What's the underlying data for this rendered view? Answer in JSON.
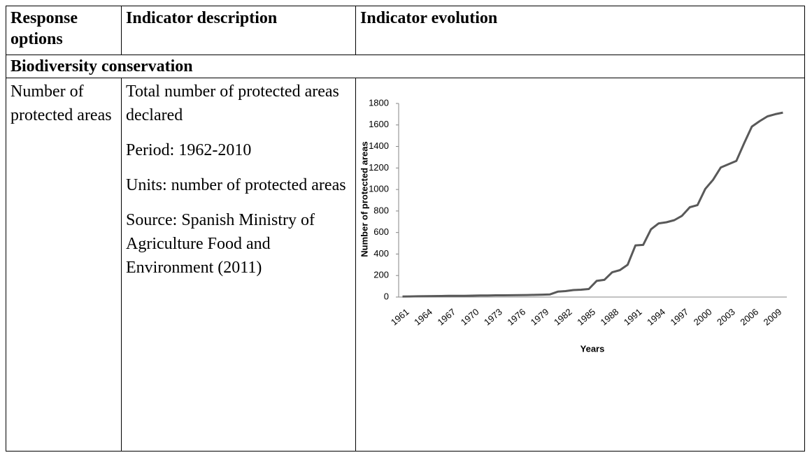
{
  "table": {
    "headers": [
      "Response options",
      "Indicator description",
      "Indicator evolution"
    ],
    "section": "Biodiversity conservation",
    "rows": [
      [
        "Number of protected areas",
        [
          "Total number of protected areas declared",
          "Period: 1962-2010",
          "Units: number of protected areas",
          "Source: Spanish Ministry of Agriculture Food and Environment (2011)"
        ]
      ]
    ]
  },
  "chart_data": {
    "type": "line",
    "x_label": "Years",
    "y_label": "Number of protected areas",
    "categories": [
      "1961",
      null,
      null,
      "1964",
      null,
      null,
      "1967",
      null,
      null,
      "1970",
      null,
      null,
      "1973",
      null,
      null,
      "1976",
      null,
      null,
      "1979",
      null,
      null,
      "1982",
      null,
      null,
      "1985",
      null,
      null,
      "1988",
      null,
      null,
      "1991",
      null,
      null,
      "1994",
      null,
      null,
      "1997",
      null,
      null,
      "2000",
      null,
      null,
      "2003",
      null,
      null,
      "2006",
      null,
      null,
      "2009",
      null
    ],
    "series": [
      {
        "name": "Number of protected areas",
        "color": "#595959",
        "values": [
          5,
          6,
          7,
          8,
          9,
          10,
          11,
          12,
          12,
          13,
          14,
          15,
          16,
          16,
          17,
          18,
          19,
          20,
          22,
          25,
          50,
          55,
          65,
          68,
          75,
          150,
          160,
          230,
          250,
          300,
          480,
          485,
          630,
          685,
          695,
          715,
          755,
          835,
          855,
          1005,
          1090,
          1205,
          1235,
          1265,
          1430,
          1585,
          1635,
          1680,
          1700,
          1715
        ]
      }
    ],
    "ylim": [
      0,
      1800
    ],
    "yticks": [
      0,
      200,
      400,
      600,
      800,
      1000,
      1200,
      1400,
      1600,
      1800
    ],
    "grid": false
  }
}
